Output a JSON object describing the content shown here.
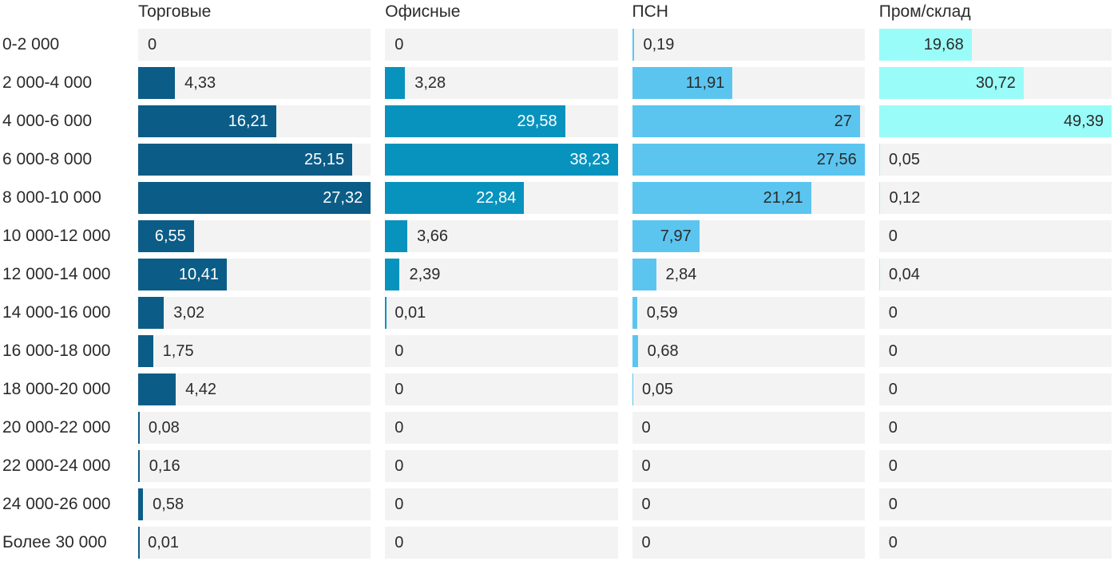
{
  "chart_data": {
    "type": "bar",
    "orientation": "horizontal",
    "grid": false,
    "legend_position": "column-headers-top",
    "track_color": "#f3f3f3",
    "text_color": "#2b2b2b",
    "value_decimal_separator": ",",
    "scaling": "each series scaled to its own max value",
    "categories": [
      "0-2 000",
      "2 000-4 000",
      "4 000-6 000",
      "6 000-8 000",
      "8 000-10 000",
      "10 000-12 000",
      "12 000-14 000",
      "14 000-16 000",
      "16 000-18 000",
      "18 000-20 000",
      "20 000-22 000",
      "22 000-24 000",
      "24 000-26 000",
      "Более 30 000"
    ],
    "series": [
      {
        "name": "Торговые",
        "color": "#0b5d87",
        "label_color_inside": "#ffffff",
        "values": [
          0,
          4.33,
          16.21,
          25.15,
          27.32,
          6.55,
          10.41,
          3.02,
          1.75,
          4.42,
          0.08,
          0.16,
          0.58,
          0.01
        ]
      },
      {
        "name": "Офисные",
        "color": "#0893be",
        "label_color_inside": "#ffffff",
        "values": [
          0,
          3.28,
          29.58,
          38.23,
          22.84,
          3.66,
          2.39,
          0.01,
          0,
          0,
          0,
          0,
          0,
          0
        ]
      },
      {
        "name": "ПСН",
        "color": "#5bc5f0",
        "label_color_inside": "#2b2b2b",
        "values": [
          0.19,
          11.91,
          27,
          27.56,
          21.21,
          7.97,
          2.84,
          0.59,
          0.68,
          0.05,
          0,
          0,
          0,
          0
        ]
      },
      {
        "name": "Пром/склад",
        "color": "#9afcf8",
        "label_color_inside": "#2b2b2b",
        "values": [
          19.68,
          30.72,
          49.39,
          0.05,
          0.12,
          0,
          0.04,
          0,
          0,
          0,
          0,
          0,
          0,
          0
        ]
      }
    ]
  }
}
